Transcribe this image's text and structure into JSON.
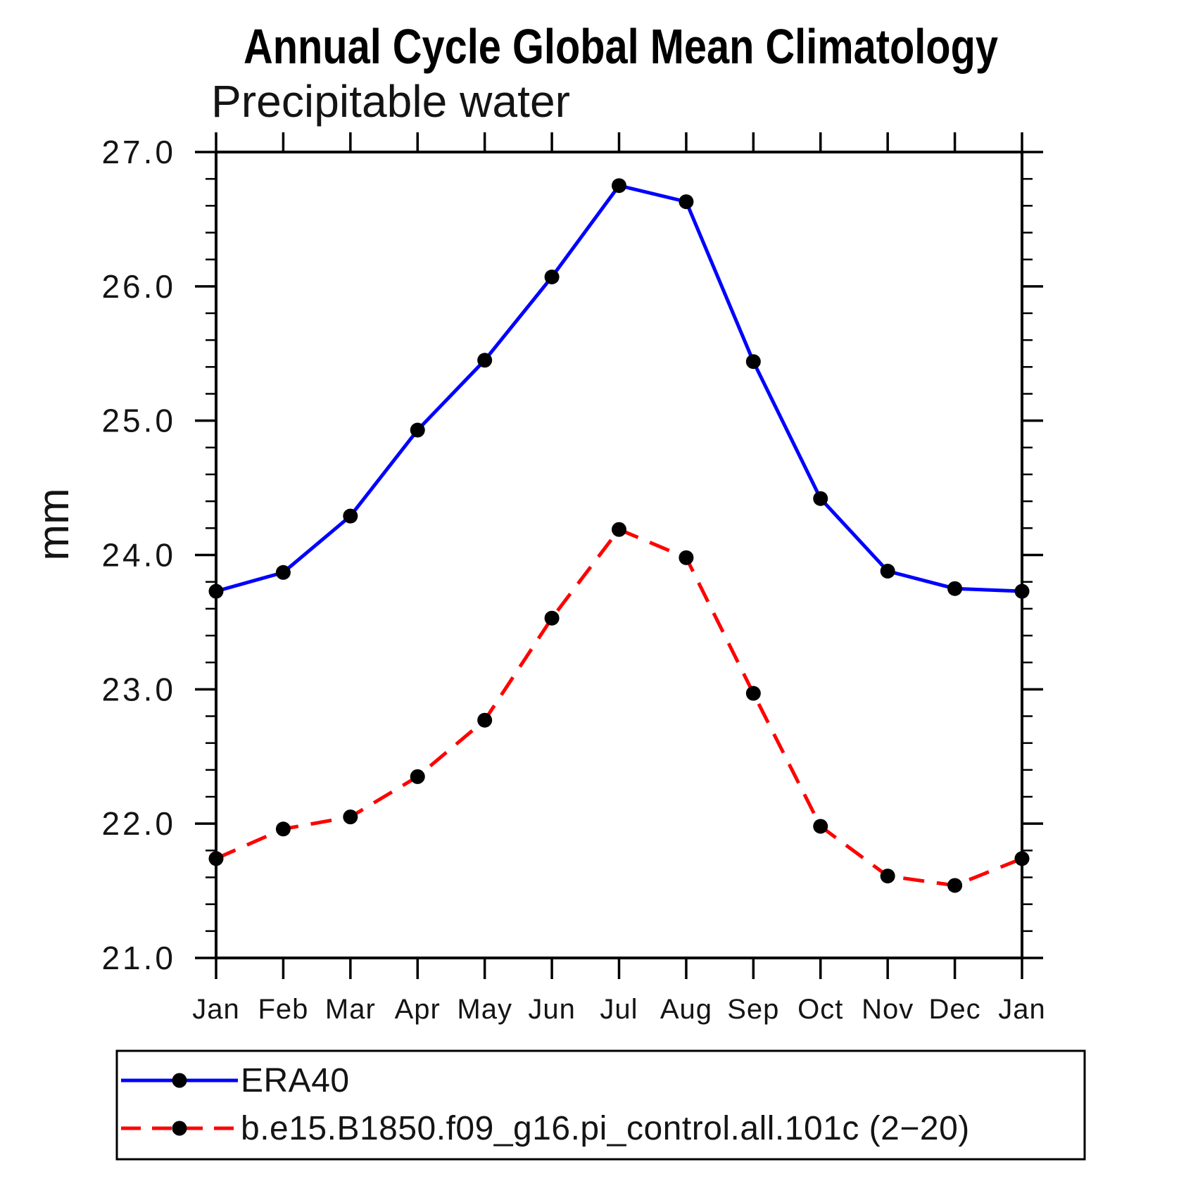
{
  "page": {
    "background": "#ffffff",
    "axis_color": "#000000",
    "marker_color": "#000000"
  },
  "chart_data": {
    "type": "line",
    "title": "Annual Cycle Global Mean Climatology",
    "subtitle": "Precipitable water",
    "ylabel": "mm",
    "xlabel": "",
    "categories": [
      "Jan",
      "Feb",
      "Mar",
      "Apr",
      "May",
      "Jun",
      "Jul",
      "Aug",
      "Sep",
      "Oct",
      "Nov",
      "Dec",
      "Jan"
    ],
    "ylim": [
      21.0,
      27.0
    ],
    "ytick_major": 1.0,
    "ytick_minor": 0.2,
    "ytick_labels": [
      "21.0",
      "22.0",
      "23.0",
      "24.0",
      "25.0",
      "26.0",
      "27.0"
    ],
    "grid": false,
    "legend_position": "bottom-left",
    "marker": {
      "shape": "circle",
      "color": "#000000"
    },
    "series": [
      {
        "name": "ERA40",
        "color": "#0000ff",
        "line_style": "solid",
        "values": [
          23.73,
          23.87,
          24.29,
          24.93,
          25.45,
          26.07,
          26.75,
          26.63,
          25.44,
          24.42,
          23.88,
          23.75,
          23.73
        ]
      },
      {
        "name": "b.e15.B1850.f09_g16.pi_control.all.101c (2−20)",
        "color": "#ff0000",
        "line_style": "dashed",
        "values": [
          21.74,
          21.96,
          22.05,
          22.35,
          22.77,
          23.53,
          24.19,
          23.98,
          22.97,
          21.98,
          21.61,
          21.54,
          21.74
        ]
      }
    ]
  }
}
